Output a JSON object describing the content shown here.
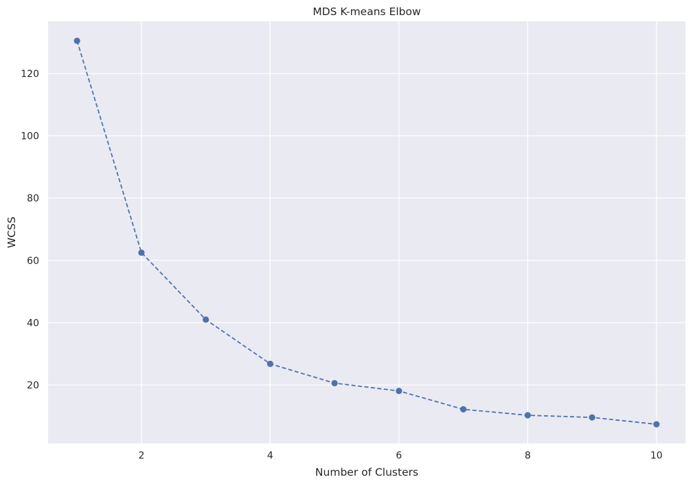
{
  "chart_data": {
    "type": "line",
    "title": "MDS K-means Elbow",
    "xlabel": "Number of Clusters",
    "ylabel": "WCSS",
    "x": [
      1,
      2,
      3,
      4,
      5,
      6,
      7,
      8,
      9,
      10
    ],
    "series": [
      {
        "values": [
          130.5,
          62.5,
          41.0,
          26.8,
          20.6,
          18.1,
          12.2,
          10.3,
          9.6,
          7.4
        ]
      }
    ],
    "xlim": [
      0.55,
      10.45
    ],
    "ylim": [
      1.25,
      136.75
    ],
    "xticks": [
      2,
      4,
      6,
      8,
      10
    ],
    "yticks": [
      20,
      40,
      60,
      80,
      100,
      120
    ],
    "grid": true,
    "line_style": "dashed",
    "marker": "circle",
    "colors": {
      "series": "#4c72b0",
      "plot_background": "#eaeaf2",
      "grid": "#ffffff",
      "text": "#262626"
    }
  }
}
